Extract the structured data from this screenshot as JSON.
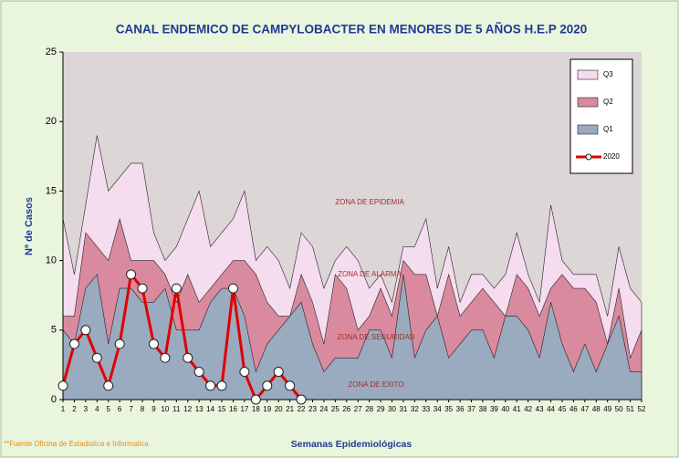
{
  "chart_data": {
    "type": "area",
    "title": "CANAL ENDEMICO DE CAMPYLOBACTER EN MENORES DE 5 AÑOS H.E.P 2020",
    "y_label": "Nº de Casos",
    "x_label": "Semanas Epidemiológicas",
    "footnote": "**Fuente Oficina de Estadistica e Informatica",
    "background": "#dcd6d6",
    "annotations": [
      "ZONA DE EPIDEMIA",
      "ZONA DE ALARMA",
      "ZONA DE SEGURIDAD",
      "ZONA DE EXITO"
    ],
    "categories": [
      1,
      2,
      3,
      4,
      5,
      6,
      7,
      8,
      9,
      10,
      11,
      12,
      13,
      14,
      15,
      16,
      17,
      18,
      19,
      20,
      21,
      22,
      23,
      24,
      25,
      26,
      27,
      28,
      29,
      30,
      31,
      32,
      33,
      34,
      35,
      36,
      37,
      38,
      39,
      40,
      41,
      42,
      43,
      44,
      45,
      46,
      47,
      48,
      49,
      50,
      51,
      52
    ],
    "ylim": [
      0,
      25
    ],
    "yticks": [
      0,
      5,
      10,
      15,
      20,
      25
    ],
    "legend": "upper right",
    "series": [
      {
        "name": "Q3",
        "type": "area",
        "color": "#f5dcef",
        "values": [
          13,
          9,
          14,
          19,
          15,
          16,
          17,
          17,
          12,
          10,
          11,
          13,
          15,
          11,
          12,
          13,
          15,
          10,
          11,
          10,
          8,
          12,
          11,
          8,
          10,
          11,
          10,
          8,
          9,
          7,
          11,
          11,
          13,
          8,
          11,
          7,
          9,
          9,
          8,
          9,
          12,
          9,
          7,
          14,
          10,
          9,
          9,
          9,
          6,
          11,
          8,
          7
        ]
      },
      {
        "name": "Q2",
        "type": "area",
        "color": "#d98a9e",
        "values": [
          6,
          6,
          12,
          11,
          10,
          13,
          10,
          10,
          10,
          9,
          7,
          9,
          7,
          8,
          9,
          10,
          10,
          9,
          7,
          6,
          6,
          9,
          7,
          4,
          9,
          8,
          5,
          6,
          8,
          6,
          10,
          9,
          9,
          6,
          9,
          6,
          7,
          8,
          7,
          6,
          9,
          8,
          6,
          8,
          9,
          8,
          8,
          7,
          4,
          8,
          3,
          5
        ]
      },
      {
        "name": "Q1",
        "type": "area",
        "color": "#9aaabf",
        "values": [
          5,
          4,
          8,
          9,
          4,
          8,
          8,
          7,
          7,
          8,
          5,
          5,
          5,
          7,
          8,
          8,
          6,
          2,
          4,
          5,
          6,
          7,
          4,
          2,
          3,
          3,
          3,
          5,
          5,
          3,
          9,
          3,
          5,
          6,
          3,
          4,
          5,
          5,
          3,
          6,
          6,
          5,
          3,
          7,
          4,
          2,
          4,
          2,
          4,
          6,
          2,
          2
        ]
      },
      {
        "name": "2020",
        "type": "line",
        "color": "#e00000",
        "values": [
          1,
          4,
          5,
          3,
          1,
          4,
          9,
          8,
          4,
          3,
          8,
          3,
          2,
          1,
          1,
          8,
          2,
          0,
          1,
          2,
          1,
          0,
          null,
          null,
          null,
          null,
          null,
          null,
          null,
          null,
          null,
          null,
          null,
          null,
          null,
          null,
          null,
          null,
          null,
          null,
          null,
          null,
          null,
          null,
          null,
          null,
          null,
          null,
          null,
          null,
          null,
          null
        ]
      }
    ]
  }
}
